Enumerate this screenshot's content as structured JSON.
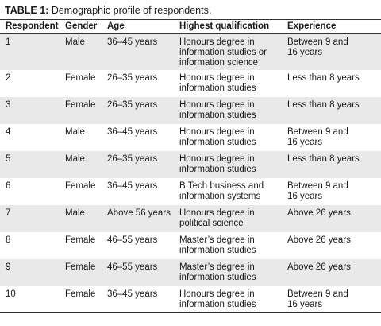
{
  "caption": {
    "label": "TABLE 1:",
    "text": "Demographic profile of respondents."
  },
  "table": {
    "headers": [
      "Respondent",
      "Gender",
      "Age",
      "Highest qualification",
      "Experience"
    ],
    "rows": [
      [
        "1",
        "Male",
        "36–45 years",
        "Honours degree in\ninformation studies or\ninformation science",
        "Between 9 and\n16 years"
      ],
      [
        "2",
        "Female",
        "26–35 years",
        "Honours degree in\ninformation studies",
        "Less than 8 years"
      ],
      [
        "3",
        "Female",
        "26–35 years",
        "Honours degree in\ninformation studies",
        "Less than 8 years"
      ],
      [
        "4",
        "Male",
        "36–45 years",
        "Honours degree in\ninformation studies",
        "Between 9 and\n16 years"
      ],
      [
        "5",
        "Male",
        "26–35 years",
        "Honours degree in\ninformation studies",
        "Less than 8 years"
      ],
      [
        "6",
        "Female",
        "36–45 years",
        "B.Tech business and\ninformation systems",
        "Between 9 and\n16 years"
      ],
      [
        "7",
        "Male",
        "Above 56 years",
        "Honours degree in\npolitical science",
        "Above 26 years"
      ],
      [
        "8",
        "Female",
        "46–55 years",
        "Master’s degree in\ninformation studies",
        "Above 26 years"
      ],
      [
        "9",
        "Female",
        "46–55 years",
        "Master’s degree in\ninformation studies",
        "Above 26 years"
      ],
      [
        "10",
        "Female",
        "36–45 years",
        "Honours degree in\ninformation studies",
        "Between 9 and\n16 years"
      ]
    ]
  },
  "colors": {
    "row_shading": "#e9e9e9",
    "rule": "#333333",
    "text": "#1a1a1a"
  }
}
